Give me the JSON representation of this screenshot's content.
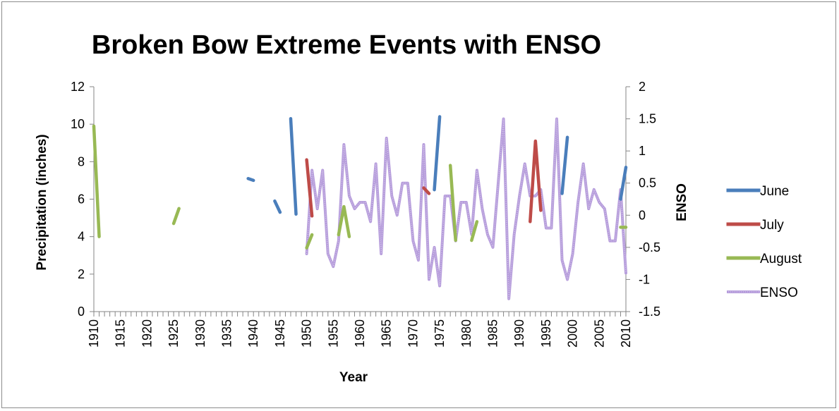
{
  "chart_data": {
    "type": "line",
    "title": "Broken Bow Extreme Events with ENSO",
    "xlabel": "Year",
    "ylabel": "Precipitation (inches)",
    "y2label": "ENSO",
    "xlim": [
      1910,
      2010
    ],
    "ylim": [
      0,
      12
    ],
    "y2lim": [
      -1.5,
      2
    ],
    "xticks": [
      "1910",
      "1915",
      "1920",
      "1925",
      "1930",
      "1935",
      "1940",
      "1945",
      "1950",
      "1955",
      "1960",
      "1965",
      "1970",
      "1975",
      "1980",
      "1985",
      "1990",
      "1995",
      "2000",
      "2005",
      "2010"
    ],
    "yticks": [
      "0",
      "2",
      "4",
      "6",
      "8",
      "10",
      "12"
    ],
    "y2ticks": [
      "-1.5",
      "-1",
      "-0.5",
      "0",
      "0.5",
      "1",
      "1.5",
      "2"
    ],
    "legend_position": "right",
    "grid": false,
    "series": [
      {
        "name": "June",
        "axis": "left",
        "color": "#4a7ebb",
        "segments": [
          [
            [
              1939,
              7.1
            ],
            [
              1940,
              7.0
            ]
          ],
          [
            [
              1944,
              5.9
            ],
            [
              1945,
              5.3
            ]
          ],
          [
            [
              1947,
              10.3
            ],
            [
              1948,
              5.2
            ]
          ],
          [
            [
              1974,
              6.5
            ],
            [
              1975,
              10.4
            ]
          ],
          [
            [
              1998,
              6.3
            ],
            [
              1999,
              9.3
            ]
          ],
          [
            [
              2009,
              6.0
            ],
            [
              2010,
              7.7
            ]
          ]
        ]
      },
      {
        "name": "July",
        "axis": "left",
        "color": "#be4b48",
        "segments": [
          [
            [
              1950,
              8.1
            ],
            [
              1951,
              5.1
            ]
          ],
          [
            [
              1972,
              6.6
            ],
            [
              1973,
              6.3
            ]
          ],
          [
            [
              1992,
              4.8
            ],
            [
              1993,
              9.1
            ],
            [
              1994,
              5.4
            ]
          ]
        ]
      },
      {
        "name": "August",
        "axis": "left",
        "color": "#98b954",
        "segments": [
          [
            [
              1910,
              9.9
            ],
            [
              1911,
              4.0
            ]
          ],
          [
            [
              1925,
              4.7
            ],
            [
              1926,
              5.5
            ]
          ],
          [
            [
              1950,
              3.4
            ],
            [
              1951,
              4.1
            ]
          ],
          [
            [
              1956,
              4.1
            ],
            [
              1957,
              5.6
            ],
            [
              1958,
              4.0
            ]
          ],
          [
            [
              1977,
              7.8
            ],
            [
              1978,
              3.8
            ]
          ],
          [
            [
              1981,
              3.8
            ],
            [
              1982,
              4.8
            ]
          ],
          [
            [
              2009,
              4.5
            ],
            [
              2010,
              4.5
            ]
          ]
        ]
      },
      {
        "name": "ENSO",
        "axis": "right",
        "color": "#b79edc",
        "x": [
          1950,
          1951,
          1952,
          1953,
          1954,
          1955,
          1956,
          1957,
          1958,
          1959,
          1960,
          1961,
          1962,
          1963,
          1964,
          1965,
          1966,
          1967,
          1968,
          1969,
          1970,
          1971,
          1972,
          1973,
          1974,
          1975,
          1976,
          1977,
          1978,
          1979,
          1980,
          1981,
          1982,
          1983,
          1984,
          1985,
          1986,
          1987,
          1988,
          1989,
          1990,
          1991,
          1992,
          1993,
          1994,
          1995,
          1996,
          1997,
          1998,
          1999,
          2000,
          2001,
          2002,
          2003,
          2004,
          2005,
          2006,
          2007,
          2008,
          2009,
          2010
        ],
        "values": [
          -0.6,
          0.7,
          0.1,
          0.7,
          -0.6,
          -0.8,
          -0.4,
          1.1,
          0.3,
          0.1,
          0.2,
          0.2,
          -0.1,
          0.8,
          -0.6,
          1.2,
          0.3,
          0.0,
          0.5,
          0.5,
          -0.4,
          -0.7,
          1.1,
          -1.0,
          -0.5,
          -1.1,
          0.3,
          0.3,
          -0.4,
          0.2,
          0.2,
          -0.3,
          0.7,
          0.1,
          -0.3,
          -0.5,
          0.5,
          1.5,
          -1.3,
          -0.3,
          0.3,
          0.8,
          0.3,
          0.3,
          0.4,
          -0.2,
          -0.2,
          1.5,
          -0.7,
          -1.0,
          -0.6,
          0.2,
          0.8,
          0.1,
          0.4,
          0.2,
          0.1,
          -0.4,
          -0.4,
          0.4,
          -0.9
        ]
      }
    ]
  }
}
